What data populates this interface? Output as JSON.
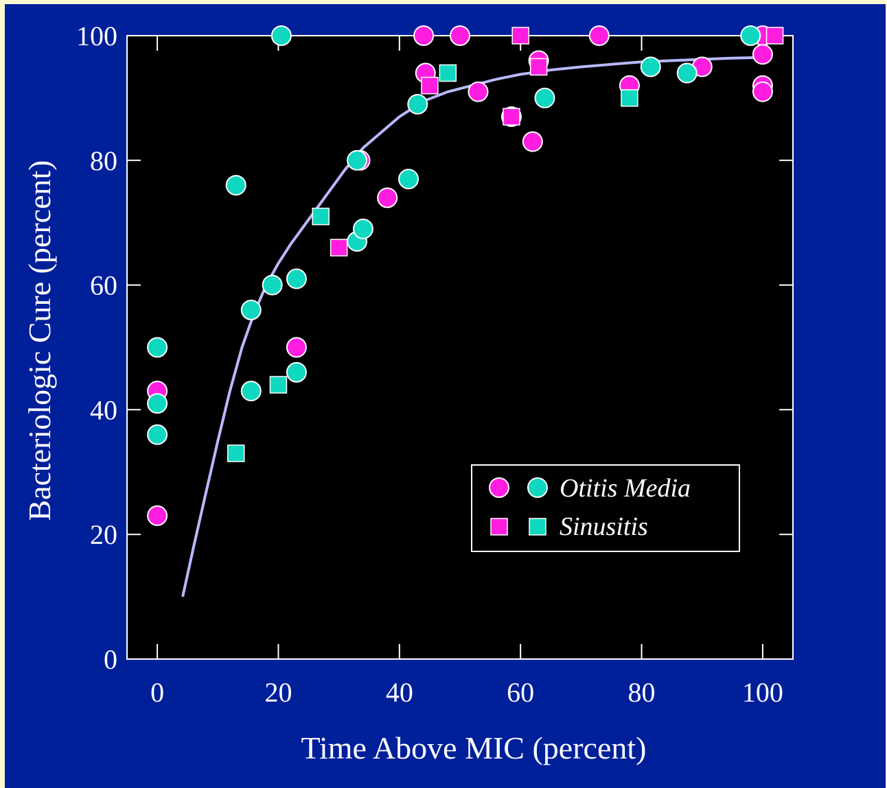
{
  "chart_data": {
    "type": "scatter",
    "title": "",
    "xlabel": "Time Above MIC (percent)",
    "ylabel": "Bacteriologic Cure (percent)",
    "xlim": [
      -5,
      105
    ],
    "ylim": [
      0,
      100
    ],
    "xticks": [
      0,
      20,
      40,
      60,
      80,
      100
    ],
    "yticks": [
      0,
      20,
      40,
      60,
      80,
      100
    ],
    "grid": false,
    "legend_position": "lower-right",
    "colors": {
      "background": "#00209a",
      "plot_area": "#000000",
      "magenta": "#ff1ee0",
      "teal": "#10d8c0",
      "curve": "#b8b8ff",
      "marker_edge": "#ffffff"
    },
    "legend": [
      {
        "label": "Otitis Media",
        "markers": [
          "circle-magenta",
          "circle-teal"
        ]
      },
      {
        "label": "Sinusitis",
        "markers": [
          "square-magenta",
          "square-teal"
        ]
      }
    ],
    "series": [
      {
        "marker": "circle",
        "color": "magenta",
        "points": [
          [
            0,
            43
          ],
          [
            0,
            23
          ],
          [
            23,
            50
          ],
          [
            33.5,
            80
          ],
          [
            38,
            74
          ],
          [
            44,
            100
          ],
          [
            44.3,
            94
          ],
          [
            50,
            100
          ],
          [
            53,
            91
          ],
          [
            62,
            83
          ],
          [
            63,
            96
          ],
          [
            73,
            100
          ],
          [
            78,
            92
          ],
          [
            90,
            95
          ],
          [
            100,
            100
          ],
          [
            100,
            97
          ],
          [
            100,
            92
          ],
          [
            100,
            91
          ]
        ]
      },
      {
        "marker": "circle",
        "color": "teal",
        "points": [
          [
            0,
            50
          ],
          [
            0,
            41
          ],
          [
            0,
            36
          ],
          [
            13,
            76
          ],
          [
            15.5,
            56
          ],
          [
            15.5,
            43
          ],
          [
            19,
            60
          ],
          [
            20.5,
            100
          ],
          [
            23,
            61
          ],
          [
            23,
            46
          ],
          [
            33,
            67
          ],
          [
            33,
            80
          ],
          [
            34,
            69
          ],
          [
            41.5,
            77
          ],
          [
            43,
            89
          ],
          [
            58.5,
            87
          ],
          [
            64,
            90
          ],
          [
            81.5,
            95
          ],
          [
            87.5,
            94
          ],
          [
            98,
            100
          ]
        ]
      },
      {
        "marker": "square",
        "color": "magenta",
        "points": [
          [
            30,
            66
          ],
          [
            45,
            92
          ],
          [
            58.5,
            87
          ],
          [
            60,
            100
          ],
          [
            63,
            95
          ],
          [
            102,
            100
          ]
        ]
      },
      {
        "marker": "square",
        "color": "teal",
        "points": [
          [
            13,
            33
          ],
          [
            20,
            44
          ],
          [
            27,
            71
          ],
          [
            48,
            94
          ],
          [
            78,
            90
          ]
        ]
      }
    ],
    "fit_curve": [
      [
        4.2,
        10
      ],
      [
        6,
        18
      ],
      [
        8,
        26.5
      ],
      [
        10,
        35
      ],
      [
        12,
        43
      ],
      [
        14,
        50
      ],
      [
        16,
        55.5
      ],
      [
        18,
        60
      ],
      [
        20,
        63.5
      ],
      [
        22,
        66.5
      ],
      [
        25,
        70.5
      ],
      [
        28,
        74.5
      ],
      [
        31,
        78.5
      ],
      [
        34,
        82
      ],
      [
        37,
        84.5
      ],
      [
        40,
        87
      ],
      [
        44,
        89.5
      ],
      [
        48,
        91
      ],
      [
        52,
        92
      ],
      [
        56,
        93
      ],
      [
        60,
        93.8
      ],
      [
        65,
        94.5
      ],
      [
        70,
        95
      ],
      [
        75,
        95.4
      ],
      [
        80,
        95.8
      ],
      [
        85,
        96
      ],
      [
        90,
        96.2
      ],
      [
        95,
        96.4
      ],
      [
        100,
        96.5
      ]
    ]
  }
}
